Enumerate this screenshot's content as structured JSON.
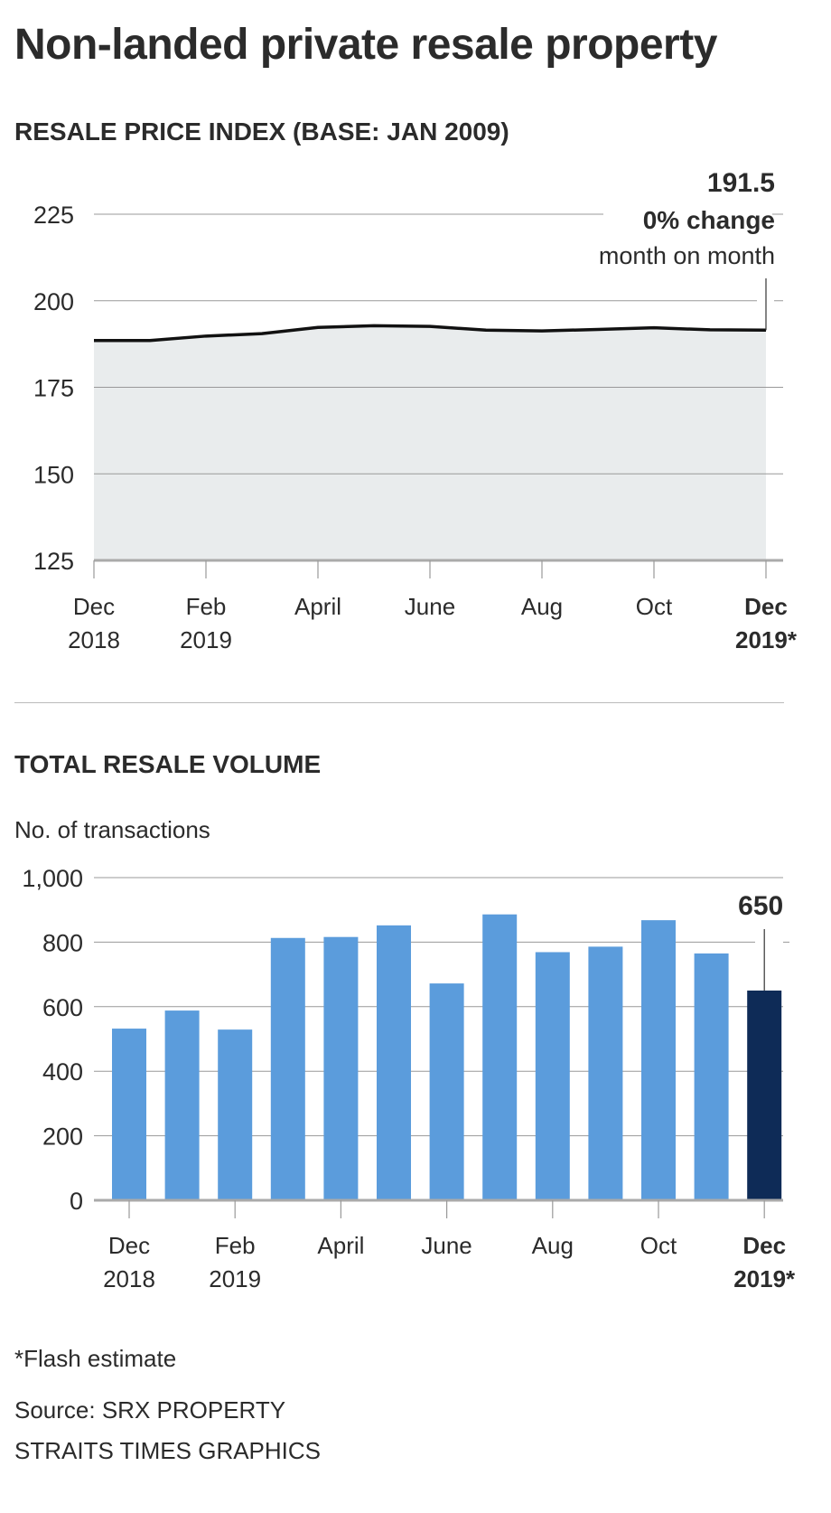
{
  "title": "Non-landed private resale property",
  "colors": {
    "fill": "#e9eced",
    "line": "#111111",
    "bar": "#5b9cdc",
    "bar_highlight": "#0e2b57",
    "grid": "#999999"
  },
  "chart_data": [
    {
      "type": "area",
      "title": "RESALE PRICE INDEX (BASE: JAN 2009)",
      "x": [
        "Dec 2018",
        "Jan 2019",
        "Feb 2019",
        "Mar 2019",
        "Apr 2019",
        "May 2019",
        "Jun 2019",
        "Jul 2019",
        "Aug 2019",
        "Sep 2019",
        "Oct 2019",
        "Nov 2019",
        "Dec 2019"
      ],
      "values": [
        188.5,
        188.5,
        189.8,
        190.5,
        192.3,
        192.8,
        192.6,
        191.5,
        191.3,
        191.7,
        192.2,
        191.6,
        191.5
      ],
      "ylim": [
        125,
        225
      ],
      "yticks": [
        "125",
        "150",
        "175",
        "200",
        "225"
      ],
      "xtick_labels": [
        {
          "index": 0,
          "line1": "Dec",
          "line2": "2018",
          "bold": false
        },
        {
          "index": 2,
          "line1": "Feb",
          "line2": "2019",
          "bold": false
        },
        {
          "index": 4,
          "line1": "April",
          "line2": "",
          "bold": false
        },
        {
          "index": 6,
          "line1": "June",
          "line2": "",
          "bold": false
        },
        {
          "index": 8,
          "line1": "Aug",
          "line2": "",
          "bold": false
        },
        {
          "index": 10,
          "line1": "Oct",
          "line2": "",
          "bold": false
        },
        {
          "index": 12,
          "line1": "Dec",
          "line2": "2019*",
          "bold": true
        }
      ],
      "annotation": {
        "value": "191.5",
        "line2": "0% change",
        "line3": "month on month"
      },
      "grid": true
    },
    {
      "type": "bar",
      "title": "TOTAL RESALE VOLUME",
      "ylabel": "No. of transactions",
      "categories": [
        "Dec 2018",
        "Jan 2019",
        "Feb 2019",
        "Mar 2019",
        "Apr 2019",
        "May 2019",
        "Jun 2019",
        "Jul 2019",
        "Aug 2019",
        "Sep 2019",
        "Oct 2019",
        "Nov 2019",
        "Dec 2019"
      ],
      "values": [
        532,
        588,
        529,
        813,
        816,
        852,
        672,
        886,
        769,
        786,
        868,
        765,
        650
      ],
      "ylim": [
        0,
        1000
      ],
      "yticks": [
        "0",
        "200",
        "400",
        "600",
        "800",
        "1,000"
      ],
      "xtick_labels": [
        {
          "index": 0,
          "line1": "Dec",
          "line2": "2018",
          "bold": false
        },
        {
          "index": 2,
          "line1": "Feb",
          "line2": "2019",
          "bold": false
        },
        {
          "index": 4,
          "line1": "April",
          "line2": "",
          "bold": false
        },
        {
          "index": 6,
          "line1": "June",
          "line2": "",
          "bold": false
        },
        {
          "index": 8,
          "line1": "Aug",
          "line2": "",
          "bold": false
        },
        {
          "index": 10,
          "line1": "Oct",
          "line2": "",
          "bold": false
        },
        {
          "index": 12,
          "line1": "Dec",
          "line2": "2019*",
          "bold": true
        }
      ],
      "highlight_index": 12,
      "annotation": {
        "value": "650"
      },
      "grid": true
    }
  ],
  "footnote": "*Flash estimate",
  "source": "Source: SRX PROPERTY",
  "credit": "STRAITS TIMES GRAPHICS"
}
